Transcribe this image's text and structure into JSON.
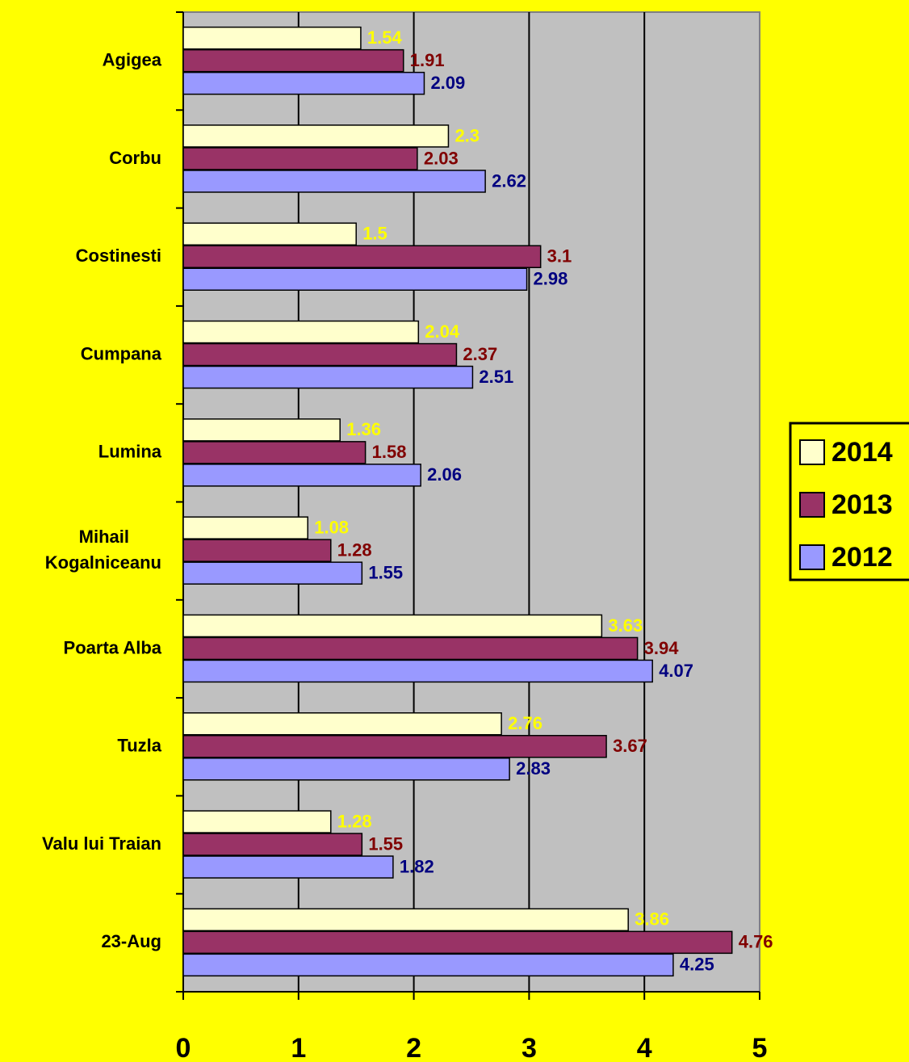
{
  "chart_data": {
    "type": "barh",
    "categories": [
      "Agigea",
      "Corbu",
      "Costinesti",
      "Cumpana",
      "Lumina",
      "Mihail Kogalniceanu",
      "Poarta Alba",
      "Tuzla",
      "Valu lui Traian",
      "23-Aug"
    ],
    "series": [
      {
        "name": "2014",
        "color": "#ffffcc",
        "label_color": "#ffff00",
        "values": [
          1.54,
          2.3,
          1.5,
          2.04,
          1.36,
          1.08,
          3.63,
          2.76,
          1.28,
          3.86
        ]
      },
      {
        "name": "2013",
        "color": "#993366",
        "label_color": "#800000",
        "values": [
          1.91,
          2.03,
          3.1,
          2.37,
          1.58,
          1.28,
          3.94,
          3.67,
          1.55,
          4.76
        ]
      },
      {
        "name": "2012",
        "color": "#9999ff",
        "label_color": "#000080",
        "values": [
          2.09,
          2.62,
          2.98,
          2.51,
          2.06,
          1.55,
          4.07,
          2.83,
          1.82,
          4.25
        ]
      }
    ],
    "xlim": [
      0,
      5
    ],
    "xticks": [
      0,
      1,
      2,
      3,
      4,
      5
    ],
    "grid": true,
    "legend": "right"
  }
}
